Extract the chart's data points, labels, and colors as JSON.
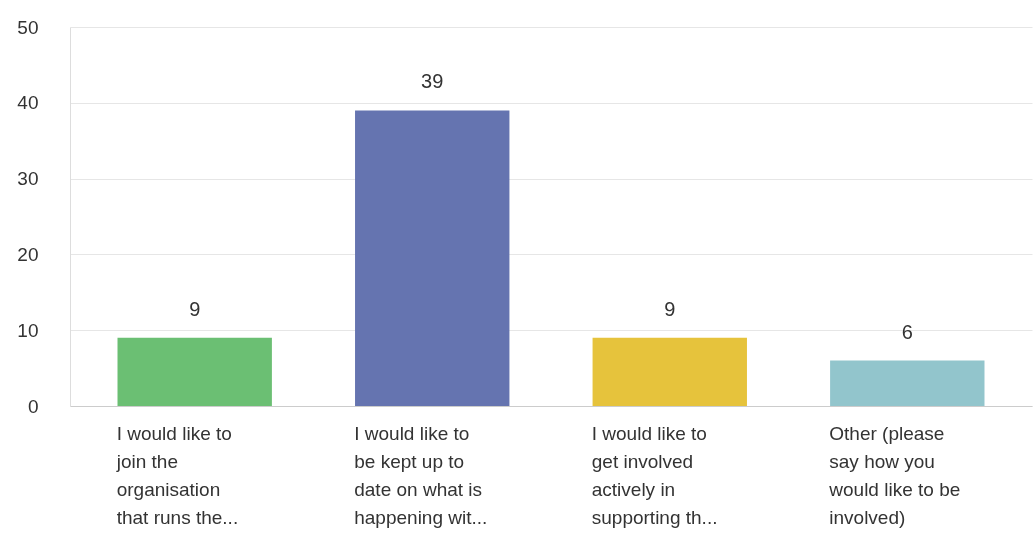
{
  "chart_data": {
    "type": "bar",
    "categories": [
      "I would like to\njoin the\norganisation\nthat runs the...",
      "I would like to\nbe kept up to\ndate on what is\nhappening wit...",
      "I would like to\nget involved\nactively in\nsupporting th...",
      "Other (please\nsay how you\nwould like to be\ninvolved)"
    ],
    "values": [
      9,
      39,
      9,
      6
    ],
    "colors": [
      "#6bbf73",
      "#6574b0",
      "#e6c33c",
      "#92c5cc"
    ],
    "ylim": [
      0,
      50
    ],
    "yticks": [
      0,
      10,
      20,
      30,
      40,
      50
    ],
    "grid": "y",
    "data_labels": true
  }
}
